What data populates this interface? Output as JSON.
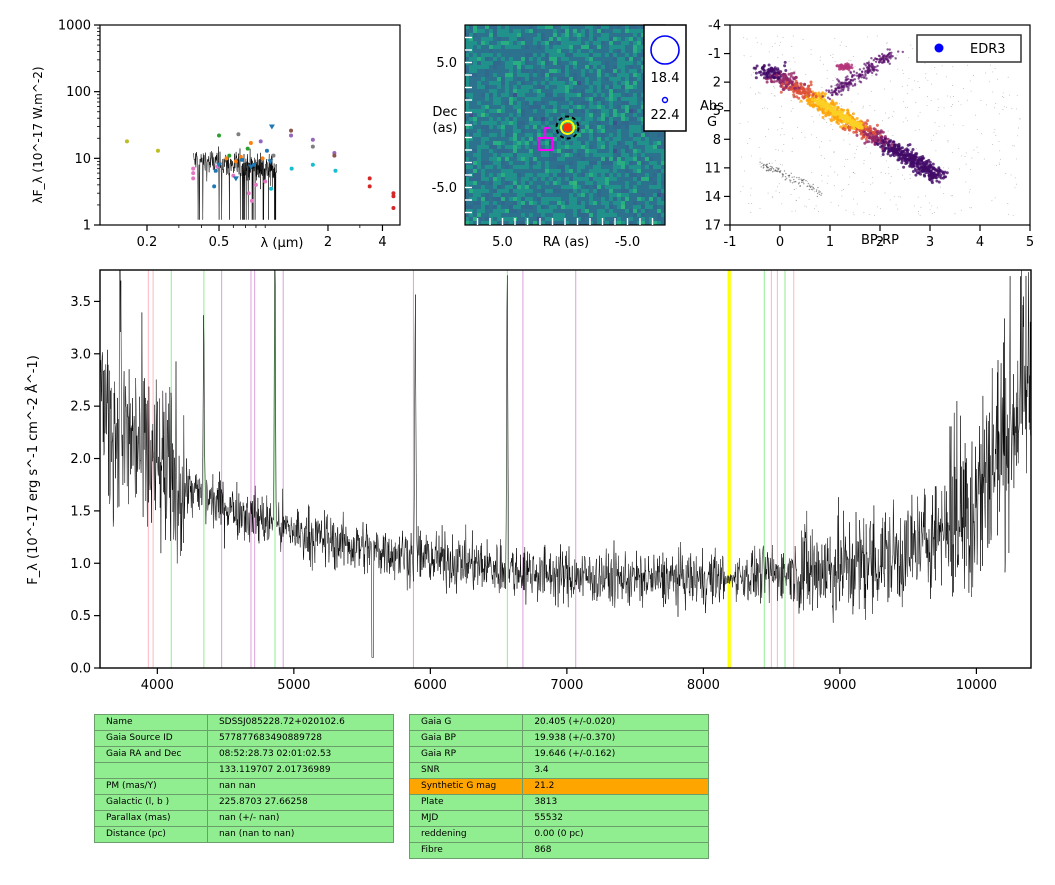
{
  "chart_data": [
    {
      "type": "scatter",
      "id": "sed",
      "xlabel": "λ (μm)",
      "ylabel": "λF_λ (10^-17 W.m^-2)",
      "xscale": "log",
      "yscale": "log",
      "xlim": [
        0.11,
        5.0
      ],
      "ylim": [
        1,
        1000
      ],
      "xticks": [
        0.2,
        0.5,
        2,
        4
      ],
      "xtick_labels": [
        "0.2",
        "0.5",
        "2",
        "4"
      ],
      "yticks": [
        1,
        10,
        100,
        1000
      ],
      "ytick_labels": [
        "1",
        "10",
        "100",
        "1000"
      ],
      "points": [
        {
          "x": 0.155,
          "y": 18.0,
          "color": "#bcbd22"
        },
        {
          "x": 0.23,
          "y": 13.0,
          "color": "#bcbd22"
        },
        {
          "x": 0.36,
          "y": 7.0,
          "color": "#e377c2"
        },
        {
          "x": 0.36,
          "y": 6.0,
          "color": "#e377c2"
        },
        {
          "x": 0.36,
          "y": 5.0,
          "color": "#e377c2"
        },
        {
          "x": 0.47,
          "y": 3.8,
          "color": "#1f77b4"
        },
        {
          "x": 0.48,
          "y": 6.5,
          "color": "#1f77b4"
        },
        {
          "x": 0.49,
          "y": 7.5,
          "color": "#e377c2"
        },
        {
          "x": 0.5,
          "y": 22.0,
          "color": "#2ca02c"
        },
        {
          "x": 0.55,
          "y": 10.0,
          "color": "#ff7f0e"
        },
        {
          "x": 0.57,
          "y": 11.0,
          "color": "#2ca02c"
        },
        {
          "x": 0.6,
          "y": 5.5,
          "color": "#e377c2"
        },
        {
          "x": 0.62,
          "y": 9.0,
          "color": "#ff7f0e"
        },
        {
          "x": 0.64,
          "y": 23.0,
          "color": "#7f7f7f"
        },
        {
          "x": 0.66,
          "y": 10.5,
          "color": "#ff7f0e"
        },
        {
          "x": 0.72,
          "y": 14.0,
          "color": "#2ca02c"
        },
        {
          "x": 0.75,
          "y": 17.0,
          "color": "#ff7f0e"
        },
        {
          "x": 0.73,
          "y": 3.0,
          "color": "#e377c2"
        },
        {
          "x": 0.76,
          "y": 2.3,
          "color": "#e377c2"
        },
        {
          "x": 0.8,
          "y": 4.0,
          "color": "#e377c2"
        },
        {
          "x": 0.85,
          "y": 18.0,
          "color": "#9467bd"
        },
        {
          "x": 0.87,
          "y": 10.0,
          "color": "#ff7f0e"
        },
        {
          "x": 0.9,
          "y": 4.5,
          "color": "#e377c2"
        },
        {
          "x": 0.92,
          "y": 13.0,
          "color": "#1f77b4"
        },
        {
          "x": 0.97,
          "y": 3.5,
          "color": "#17becf"
        },
        {
          "x": 1.0,
          "y": 11.0,
          "color": "#7f7f7f"
        },
        {
          "x": 0.67,
          "y": 9.5,
          "color": "#1f77b4"
        },
        {
          "x": 0.78,
          "y": 8.0,
          "color": "#1f77b4"
        },
        {
          "x": 1.25,
          "y": 26.0,
          "color": "#8c564b"
        },
        {
          "x": 1.25,
          "y": 22.0,
          "color": "#9467bd"
        },
        {
          "x": 1.26,
          "y": 7.0,
          "color": "#17becf"
        },
        {
          "x": 1.65,
          "y": 8.0,
          "color": "#17becf"
        },
        {
          "x": 1.65,
          "y": 19.0,
          "color": "#9467bd"
        },
        {
          "x": 1.65,
          "y": 15.0,
          "color": "#7f7f7f"
        },
        {
          "x": 2.17,
          "y": 12.0,
          "color": "#9467bd"
        },
        {
          "x": 2.17,
          "y": 11.0,
          "color": "#8c564b"
        },
        {
          "x": 2.2,
          "y": 6.5,
          "color": "#17becf"
        },
        {
          "x": 3.4,
          "y": 5.0,
          "color": "#d62728"
        },
        {
          "x": 3.4,
          "y": 3.8,
          "color": "#d62728"
        },
        {
          "x": 4.6,
          "y": 3.0,
          "color": "#d62728"
        },
        {
          "x": 4.6,
          "y": 2.7,
          "color": "#d62728"
        },
        {
          "x": 4.6,
          "y": 1.8,
          "color": "#d62728"
        }
      ],
      "triangles": [
        {
          "x": 0.5,
          "y": 8.0,
          "color": "#1f77b4"
        },
        {
          "x": 0.75,
          "y": 7.5,
          "color": "#1f77b4"
        },
        {
          "x": 0.98,
          "y": 30.0,
          "color": "#1f77b4"
        },
        {
          "x": 0.96,
          "y": 9.0,
          "color": "#1f77b4"
        },
        {
          "x": 0.62,
          "y": 5.0,
          "color": "#1f77b4"
        }
      ]
    },
    {
      "type": "heatmap",
      "id": "image",
      "xlabel": "RA (as)",
      "ylabel": "Dec\n(as)",
      "xlim": [
        8.0,
        -8.0
      ],
      "ylim": [
        -8.0,
        8.0
      ],
      "xticks": [
        5.0,
        -5.0
      ],
      "xtick_labels": [
        "5.0",
        "-5.0"
      ],
      "yticks": [
        5.0,
        -5.0
      ],
      "ytick_labels": [
        "5.0",
        "-5.0"
      ],
      "source": {
        "ra": -0.2,
        "dec": -0.2
      },
      "gaia_marker": {
        "ra": 1.5,
        "dec": -1.6
      },
      "legend": [
        "18.4",
        "22.4"
      ]
    },
    {
      "type": "scatter",
      "id": "hrd",
      "xlabel": "BP-RP",
      "ylabel": "Abs\nG",
      "xlim": [
        -1,
        5
      ],
      "ylim": [
        17,
        -4
      ],
      "xticks": [
        -1,
        0,
        1,
        2,
        3,
        4,
        5
      ],
      "xtick_labels": [
        "-1",
        "0",
        "1",
        "2",
        "3",
        "4",
        "5"
      ],
      "yticks": [
        -4,
        -1,
        2,
        5,
        8,
        11,
        14,
        17
      ],
      "ytick_labels": [
        "-4",
        "-1",
        "2",
        "5",
        "8",
        "11",
        "14",
        "17"
      ],
      "legend": [
        "EDR3"
      ]
    },
    {
      "type": "line",
      "id": "spectrum",
      "xlabel": "",
      "ylabel": "F_λ (10^-17 erg s^-1 cm^-2 Å^-1)",
      "xlim": [
        3580,
        10400
      ],
      "ylim": [
        0.0,
        3.8
      ],
      "xticks": [
        4000,
        5000,
        6000,
        7000,
        8000,
        9000,
        10000
      ],
      "xtick_labels": [
        "4000",
        "5000",
        "6000",
        "7000",
        "8000",
        "9000",
        "10000"
      ],
      "yticks": [
        0.0,
        0.5,
        1.0,
        1.5,
        2.0,
        2.5,
        3.0,
        3.5
      ],
      "ytick_labels": [
        "0.0",
        "0.5",
        "1.0",
        "1.5",
        "2.0",
        "2.5",
        "3.0",
        "3.5"
      ],
      "continuum": [
        [
          3600,
          2.4
        ],
        [
          3800,
          2.2
        ],
        [
          4000,
          1.9
        ],
        [
          4300,
          1.65
        ],
        [
          4600,
          1.5
        ],
        [
          5000,
          1.3
        ],
        [
          5500,
          1.15
        ],
        [
          6000,
          1.05
        ],
        [
          6500,
          0.95
        ],
        [
          7000,
          0.88
        ],
        [
          7500,
          0.85
        ],
        [
          8000,
          0.85
        ],
        [
          8500,
          0.9
        ],
        [
          9000,
          0.95
        ],
        [
          9500,
          1.1
        ],
        [
          10000,
          1.6
        ],
        [
          10400,
          2.8
        ]
      ],
      "emission_lines": [
        [
          3727,
          2.7
        ],
        [
          4340,
          1.6
        ],
        [
          4861,
          2.9
        ],
        [
          5890,
          2.3
        ],
        [
          6563,
          2.8
        ]
      ],
      "lines_pink": [
        3934,
        3969,
        8498,
        8542,
        8662
      ],
      "lines_green": [
        4102,
        4341,
        4862,
        6564,
        8446,
        8598
      ],
      "lines_violet": [
        4471,
        4686,
        4713,
        4922,
        5876,
        6678,
        7065
      ],
      "lines_yellow": [
        8183,
        8195
      ]
    }
  ],
  "colors": {
    "table_bg": "#90ee90",
    "table_highlight": "#ffa500",
    "pink": "#ffb6c1",
    "green": "#90ee90",
    "violet": "#dda0dd",
    "yellow": "#ffff00"
  },
  "table_left": [
    [
      "Name",
      "SDSSJ085228.72+020102.6"
    ],
    [
      "Gaia Source ID",
      "577877683490889728"
    ],
    [
      "Gaia RA and Dec",
      "08:52:28.73    02:01:02.53"
    ],
    [
      "",
      "133.119707    2.01736989"
    ],
    [
      "PM (mas/Y)",
      "nan    nan"
    ],
    [
      "Galactic (l, b )",
      "225.8703    27.66258"
    ],
    [
      "Parallax (mas)",
      "nan (+/- nan)"
    ],
    [
      "Distance (pc)",
      "nan (nan to nan)"
    ]
  ],
  "table_right": [
    [
      "Gaia G",
      "20.405 (+/-0.020)"
    ],
    [
      "Gaia BP",
      "19.938 (+/-0.370)"
    ],
    [
      "Gaia RP",
      "19.646 (+/-0.162)"
    ],
    [
      "SNR",
      "3.4"
    ],
    [
      "Synthetic G mag",
      "21.2"
    ],
    [
      "Plate",
      "3813"
    ],
    [
      "MJD",
      "55532"
    ],
    [
      "reddening",
      "0.00 (0 pc)"
    ],
    [
      "Fibre",
      "868"
    ]
  ]
}
